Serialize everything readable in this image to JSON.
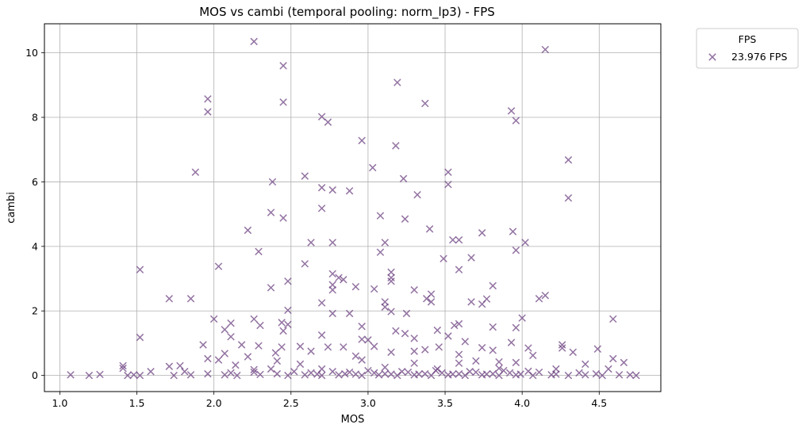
{
  "chart_data": {
    "type": "scatter",
    "title": "MOS vs cambi (temporal pooling: norm_lp3) - FPS",
    "xlabel": "MOS",
    "ylabel": "cambi",
    "xlim": [
      0.9,
      4.9
    ],
    "ylim": [
      -0.5,
      10.9
    ],
    "xticks": [
      1.0,
      1.5,
      2.0,
      2.5,
      3.0,
      3.5,
      4.0,
      4.5
    ],
    "xtick_labels": [
      "1.0",
      "1.5",
      "2.0",
      "2.5",
      "3.0",
      "3.5",
      "4.0",
      "4.5"
    ],
    "yticks": [
      0,
      2,
      4,
      6,
      8,
      10
    ],
    "ytick_labels": [
      "0",
      "2",
      "4",
      "6",
      "8",
      "10"
    ],
    "grid": true,
    "legend": {
      "title": "FPS",
      "placement": "outside-top-right"
    },
    "marker": "x",
    "series": [
      {
        "name": "23.976 FPS",
        "color": "#6a3d7e",
        "points": [
          [
            2.26,
            10.35
          ],
          [
            4.15,
            10.1
          ],
          [
            2.45,
            9.6
          ],
          [
            3.19,
            9.08
          ],
          [
            1.96,
            8.57
          ],
          [
            2.45,
            8.47
          ],
          [
            3.37,
            8.43
          ],
          [
            1.96,
            8.17
          ],
          [
            3.93,
            8.2
          ],
          [
            2.7,
            8.02
          ],
          [
            2.74,
            7.85
          ],
          [
            3.96,
            7.9
          ],
          [
            2.96,
            7.28
          ],
          [
            3.18,
            7.12
          ],
          [
            4.3,
            6.68
          ],
          [
            3.03,
            6.44
          ],
          [
            1.88,
            6.3
          ],
          [
            3.52,
            6.3
          ],
          [
            2.59,
            6.18
          ],
          [
            3.23,
            6.1
          ],
          [
            2.38,
            6.0
          ],
          [
            3.52,
            5.92
          ],
          [
            2.7,
            5.82
          ],
          [
            2.77,
            5.75
          ],
          [
            2.88,
            5.72
          ],
          [
            3.32,
            5.6
          ],
          [
            4.3,
            5.5
          ],
          [
            2.7,
            5.18
          ],
          [
            2.37,
            5.05
          ],
          [
            3.08,
            4.95
          ],
          [
            2.45,
            4.88
          ],
          [
            3.24,
            4.85
          ],
          [
            3.4,
            4.54
          ],
          [
            2.22,
            4.5
          ],
          [
            3.94,
            4.46
          ],
          [
            3.74,
            4.42
          ],
          [
            3.55,
            4.2
          ],
          [
            3.59,
            4.2
          ],
          [
            2.63,
            4.12
          ],
          [
            2.77,
            4.12
          ],
          [
            3.11,
            4.12
          ],
          [
            4.02,
            4.12
          ],
          [
            3.96,
            3.88
          ],
          [
            2.29,
            3.84
          ],
          [
            3.08,
            3.82
          ],
          [
            3.67,
            3.65
          ],
          [
            3.49,
            3.62
          ],
          [
            2.59,
            3.46
          ],
          [
            2.03,
            3.38
          ],
          [
            1.52,
            3.28
          ],
          [
            3.59,
            3.28
          ],
          [
            2.77,
            3.15
          ],
          [
            3.15,
            3.2
          ],
          [
            2.81,
            3.03
          ],
          [
            3.15,
            3.03
          ],
          [
            2.84,
            2.97
          ],
          [
            3.15,
            2.92
          ],
          [
            2.48,
            2.92
          ],
          [
            2.77,
            2.81
          ],
          [
            2.92,
            2.75
          ],
          [
            2.37,
            2.72
          ],
          [
            3.04,
            2.68
          ],
          [
            3.81,
            2.78
          ],
          [
            3.3,
            2.65
          ],
          [
            3.41,
            2.52
          ],
          [
            3.77,
            2.37
          ],
          [
            2.77,
            2.65
          ],
          [
            4.11,
            2.38
          ],
          [
            4.15,
            2.48
          ],
          [
            1.71,
            2.38
          ],
          [
            1.85,
            2.38
          ],
          [
            3.38,
            2.38
          ],
          [
            3.74,
            2.21
          ],
          [
            3.11,
            2.28
          ],
          [
            3.67,
            2.28
          ],
          [
            2.7,
            2.25
          ],
          [
            3.41,
            2.28
          ],
          [
            3.11,
            2.12
          ],
          [
            3.15,
            1.98
          ],
          [
            2.48,
            2.02
          ],
          [
            3.25,
            1.92
          ],
          [
            2.88,
            1.92
          ],
          [
            2.77,
            1.92
          ],
          [
            4.0,
            1.78
          ],
          [
            2.0,
            1.75
          ],
          [
            4.59,
            1.75
          ],
          [
            2.26,
            1.75
          ],
          [
            2.44,
            1.64
          ],
          [
            2.48,
            1.58
          ],
          [
            2.11,
            1.62
          ],
          [
            2.3,
            1.55
          ],
          [
            3.59,
            1.6
          ],
          [
            3.96,
            1.48
          ],
          [
            3.81,
            1.5
          ],
          [
            2.96,
            1.52
          ],
          [
            3.56,
            1.55
          ],
          [
            2.07,
            1.42
          ],
          [
            2.45,
            1.38
          ],
          [
            3.18,
            1.38
          ],
          [
            3.45,
            1.4
          ],
          [
            2.7,
            1.25
          ],
          [
            3.24,
            1.3
          ],
          [
            3.52,
            1.22
          ],
          [
            1.52,
            1.18
          ],
          [
            2.11,
            1.2
          ],
          [
            3.3,
            1.15
          ],
          [
            3.0,
            1.1
          ],
          [
            2.96,
            1.12
          ],
          [
            3.63,
            1.05
          ],
          [
            3.93,
            1.02
          ],
          [
            4.26,
            0.95
          ],
          [
            1.93,
            0.95
          ],
          [
            2.18,
            0.95
          ],
          [
            2.29,
            0.92
          ],
          [
            2.44,
            0.88
          ],
          [
            3.04,
            0.9
          ],
          [
            2.56,
            0.9
          ],
          [
            2.74,
            0.88
          ],
          [
            2.84,
            0.88
          ],
          [
            3.46,
            0.88
          ],
          [
            3.74,
            0.86
          ],
          [
            4.04,
            0.85
          ],
          [
            4.26,
            0.85
          ],
          [
            4.49,
            0.82
          ],
          [
            2.63,
            0.75
          ],
          [
            3.3,
            0.75
          ],
          [
            3.37,
            0.8
          ],
          [
            3.81,
            0.78
          ],
          [
            4.33,
            0.72
          ],
          [
            2.07,
            0.68
          ],
          [
            2.4,
            0.7
          ],
          [
            3.15,
            0.72
          ],
          [
            2.92,
            0.6
          ],
          [
            3.59,
            0.65
          ],
          [
            4.07,
            0.62
          ],
          [
            2.22,
            0.58
          ],
          [
            1.96,
            0.52
          ],
          [
            4.59,
            0.52
          ],
          [
            2.03,
            0.48
          ],
          [
            2.41,
            0.45
          ],
          [
            2.96,
            0.48
          ],
          [
            3.7,
            0.45
          ],
          [
            3.85,
            0.42
          ],
          [
            4.66,
            0.4
          ],
          [
            1.41,
            0.3
          ],
          [
            1.71,
            0.28
          ],
          [
            1.78,
            0.3
          ],
          [
            2.14,
            0.32
          ],
          [
            2.56,
            0.35
          ],
          [
            3.3,
            0.38
          ],
          [
            3.59,
            0.38
          ],
          [
            3.96,
            0.4
          ],
          [
            4.41,
            0.35
          ],
          [
            1.41,
            0.22
          ],
          [
            1.59,
            0.12
          ],
          [
            1.81,
            0.12
          ],
          [
            2.26,
            0.18
          ],
          [
            2.37,
            0.2
          ],
          [
            2.7,
            0.2
          ],
          [
            3.11,
            0.25
          ],
          [
            3.45,
            0.2
          ],
          [
            3.85,
            0.22
          ],
          [
            4.22,
            0.2
          ],
          [
            4.56,
            0.2
          ],
          [
            1.07,
            0.02
          ],
          [
            1.19,
            0.0
          ],
          [
            1.26,
            0.03
          ],
          [
            1.44,
            0.0
          ],
          [
            1.48,
            0.02
          ],
          [
            1.52,
            0.0
          ],
          [
            1.74,
            0.0
          ],
          [
            1.85,
            0.02
          ],
          [
            1.96,
            0.05
          ],
          [
            2.07,
            0.02
          ],
          [
            2.15,
            0.0
          ],
          [
            2.3,
            0.03
          ],
          [
            2.48,
            0.0
          ],
          [
            2.59,
            0.02
          ],
          [
            2.7,
            0.0
          ],
          [
            2.81,
            0.02
          ],
          [
            2.96,
            0.0
          ],
          [
            3.07,
            0.02
          ],
          [
            3.19,
            0.0
          ],
          [
            3.3,
            0.02
          ],
          [
            3.41,
            0.0
          ],
          [
            3.52,
            0.02
          ],
          [
            3.63,
            0.0
          ],
          [
            3.74,
            0.02
          ],
          [
            3.85,
            0.0
          ],
          [
            3.96,
            0.02
          ],
          [
            4.07,
            0.0
          ],
          [
            4.19,
            0.02
          ],
          [
            4.3,
            0.0
          ],
          [
            4.41,
            0.02
          ],
          [
            4.52,
            0.0
          ],
          [
            4.63,
            0.02
          ],
          [
            4.74,
            0.0
          ],
          [
            2.11,
            0.08
          ],
          [
            2.26,
            0.1
          ],
          [
            2.41,
            0.05
          ],
          [
            2.63,
            0.08
          ],
          [
            2.88,
            0.1
          ],
          [
            3.04,
            0.08
          ],
          [
            3.26,
            0.1
          ],
          [
            3.48,
            0.08
          ],
          [
            3.7,
            0.1
          ],
          [
            3.92,
            0.08
          ],
          [
            4.11,
            0.1
          ],
          [
            4.37,
            0.08
          ],
          [
            2.52,
            0.12
          ],
          [
            2.77,
            0.12
          ],
          [
            3.0,
            0.15
          ],
          [
            3.22,
            0.12
          ],
          [
            3.44,
            0.15
          ],
          [
            3.66,
            0.12
          ],
          [
            3.88,
            0.15
          ],
          [
            4.04,
            0.13
          ],
          [
            2.85,
            0.05
          ],
          [
            3.11,
            0.05
          ],
          [
            3.37,
            0.05
          ],
          [
            3.59,
            0.05
          ],
          [
            3.81,
            0.05
          ],
          [
            2.67,
            0.04
          ],
          [
            2.92,
            0.04
          ],
          [
            3.15,
            0.04
          ],
          [
            3.33,
            0.04
          ],
          [
            3.55,
            0.04
          ],
          [
            3.77,
            0.04
          ],
          [
            3.99,
            0.04
          ],
          [
            4.22,
            0.04
          ],
          [
            4.48,
            0.05
          ],
          [
            4.7,
            0.02
          ]
        ]
      }
    ]
  }
}
